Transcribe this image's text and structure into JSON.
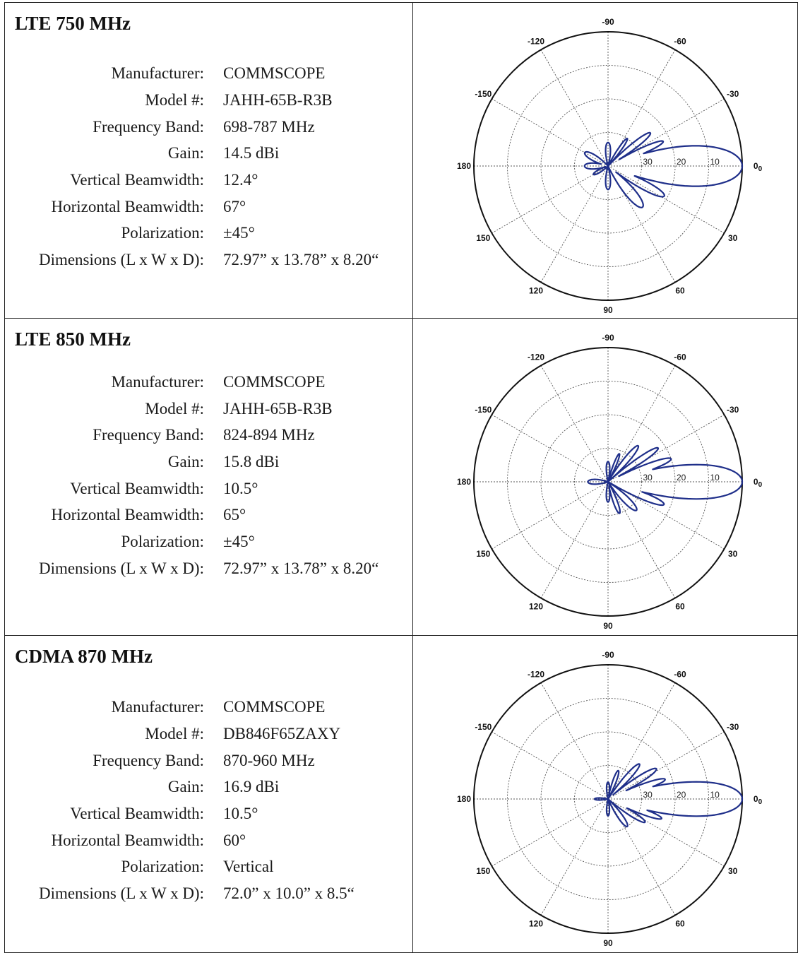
{
  "spec_labels": {
    "manufacturer": "Manufacturer:",
    "model": "Model #:",
    "frequency_band": "Frequency Band:",
    "gain": "Gain:",
    "vertical_beamwidth": "Vertical Beamwidth:",
    "horizontal_beamwidth": "Horizontal Beamwidth:",
    "polarization": "Polarization:",
    "dimensions": "Dimensions (L x W x D):"
  },
  "antennas": [
    {
      "title": "LTE 750 MHz",
      "manufacturer": "COMMSCOPE",
      "model": "JAHH-65B-R3B",
      "frequency_band": "698-787 MHz",
      "gain": "14.5 dBi",
      "vertical_beamwidth": "12.4°",
      "horizontal_beamwidth": "67°",
      "polarization": "±45°",
      "dimensions": "72.97” x 13.78” x 8.20“"
    },
    {
      "title": "LTE 850 MHz",
      "manufacturer": "COMMSCOPE",
      "model": "JAHH-65B-R3B",
      "frequency_band": "824-894 MHz",
      "gain": "15.8 dBi",
      "vertical_beamwidth": "10.5°",
      "horizontal_beamwidth": "65°",
      "polarization": "±45°",
      "dimensions": "72.97” x 13.78” x 8.20“"
    },
    {
      "title": "CDMA 870 MHz",
      "manufacturer": "COMMSCOPE",
      "model": "DB846F65ZAXY",
      "frequency_band": "870-960 MHz",
      "gain": "16.9 dBi",
      "vertical_beamwidth": "10.5°",
      "horizontal_beamwidth": "60°",
      "polarization": "Vertical",
      "dimensions": "72.0” x 10.0” x 8.5“"
    }
  ],
  "chart_data": [
    {
      "type": "polar",
      "angle_labels": [
        "-90",
        "-60",
        "-30",
        "0",
        "30",
        "60",
        "90",
        "120",
        "150",
        "180",
        "-150",
        "-120"
      ],
      "angles_deg": [
        -90,
        -60,
        -30,
        0,
        30,
        60,
        90,
        120,
        150,
        180,
        -150,
        -120
      ],
      "zero_suffix": "0",
      "ring_labels": [
        "30",
        "20",
        "10"
      ],
      "ring_levels_db": [
        -30,
        -20,
        -10
      ],
      "rlim_db": [
        -40,
        0
      ],
      "line_color": "#1f2f8a",
      "series": [
        {
          "lobes": [
            {
              "angle_deg": 0,
              "level_db": 0,
              "width_deg": 12.4
            },
            {
              "angle_deg": -12,
              "level_db": -18,
              "width_deg": 6
            },
            {
              "angle_deg": -24,
              "level_db": -22,
              "width_deg": 6
            },
            {
              "angle_deg": -38,
              "level_db": -24,
              "width_deg": 7
            },
            {
              "angle_deg": -55,
              "level_db": -30,
              "width_deg": 8
            },
            {
              "angle_deg": 13,
              "level_db": -17,
              "width_deg": 6
            },
            {
              "angle_deg": 28,
              "level_db": -21,
              "width_deg": 8
            },
            {
              "angle_deg": 50,
              "level_db": -24,
              "width_deg": 12
            },
            {
              "angle_deg": 90,
              "level_db": -33,
              "width_deg": 20
            },
            {
              "angle_deg": -90,
              "level_db": -33,
              "width_deg": 20
            },
            {
              "angle_deg": 180,
              "level_db": -33,
              "width_deg": 25
            },
            {
              "angle_deg": -150,
              "level_db": -32,
              "width_deg": 20
            },
            {
              "angle_deg": 150,
              "level_db": -35,
              "width_deg": 20
            }
          ]
        }
      ]
    },
    {
      "type": "polar",
      "angle_labels": [
        "-90",
        "-60",
        "-30",
        "0",
        "30",
        "60",
        "90",
        "120",
        "150",
        "180",
        "-150",
        "-120"
      ],
      "angles_deg": [
        -90,
        -60,
        -30,
        0,
        30,
        60,
        90,
        120,
        150,
        180,
        -150,
        -120
      ],
      "zero_suffix": "0",
      "ring_labels": [
        "30",
        "20",
        "10"
      ],
      "ring_levels_db": [
        -30,
        -20,
        -10
      ],
      "rlim_db": [
        -40,
        0
      ],
      "line_color": "#1f2f8a",
      "series": [
        {
          "lobes": [
            {
              "angle_deg": 0,
              "level_db": 0,
              "width_deg": 10.5
            },
            {
              "angle_deg": -10,
              "level_db": -15,
              "width_deg": 5
            },
            {
              "angle_deg": -20,
              "level_db": -20,
              "width_deg": 6
            },
            {
              "angle_deg": -34,
              "level_db": -22,
              "width_deg": 6
            },
            {
              "angle_deg": -50,
              "level_db": -26,
              "width_deg": 8
            },
            {
              "angle_deg": -68,
              "level_db": -31,
              "width_deg": 8
            },
            {
              "angle_deg": 10,
              "level_db": -15,
              "width_deg": 5
            },
            {
              "angle_deg": 22,
              "level_db": -22,
              "width_deg": 7
            },
            {
              "angle_deg": 45,
              "level_db": -28,
              "width_deg": 12
            },
            {
              "angle_deg": 70,
              "level_db": -30,
              "width_deg": 10
            },
            {
              "angle_deg": 90,
              "level_db": -34,
              "width_deg": 18
            },
            {
              "angle_deg": -90,
              "level_db": -34,
              "width_deg": 18
            },
            {
              "angle_deg": 180,
              "level_db": -34,
              "width_deg": 25
            }
          ]
        }
      ]
    },
    {
      "type": "polar",
      "angle_labels": [
        "-90",
        "-60",
        "-30",
        "0",
        "30",
        "60",
        "90",
        "120",
        "150",
        "180",
        "-150",
        "-120"
      ],
      "angles_deg": [
        -90,
        -60,
        -30,
        0,
        30,
        60,
        90,
        120,
        150,
        180,
        -150,
        -120
      ],
      "zero_suffix": "0",
      "ring_labels": [
        "30",
        "20",
        "10"
      ],
      "ring_levels_db": [
        -30,
        -20,
        -10
      ],
      "rlim_db": [
        -40,
        0
      ],
      "line_color": "#1f2f8a",
      "series": [
        {
          "lobes": [
            {
              "angle_deg": 0,
              "level_db": 0,
              "width_deg": 10.5
            },
            {
              "angle_deg": -9,
              "level_db": -19,
              "width_deg": 5
            },
            {
              "angle_deg": -19,
              "level_db": -22,
              "width_deg": 6
            },
            {
              "angle_deg": -32,
              "level_db": -23,
              "width_deg": 7
            },
            {
              "angle_deg": -48,
              "level_db": -26,
              "width_deg": 8
            },
            {
              "angle_deg": -70,
              "level_db": -31,
              "width_deg": 10
            },
            {
              "angle_deg": 10,
              "level_db": -18,
              "width_deg": 6
            },
            {
              "angle_deg": 20,
              "level_db": -23,
              "width_deg": 6
            },
            {
              "angle_deg": 32,
              "level_db": -27,
              "width_deg": 8
            },
            {
              "angle_deg": 55,
              "level_db": -30,
              "width_deg": 12
            },
            {
              "angle_deg": 90,
              "level_db": -35,
              "width_deg": 20
            },
            {
              "angle_deg": -90,
              "level_db": -35,
              "width_deg": 20
            },
            {
              "angle_deg": 180,
              "level_db": -36,
              "width_deg": 20
            }
          ]
        }
      ]
    }
  ]
}
